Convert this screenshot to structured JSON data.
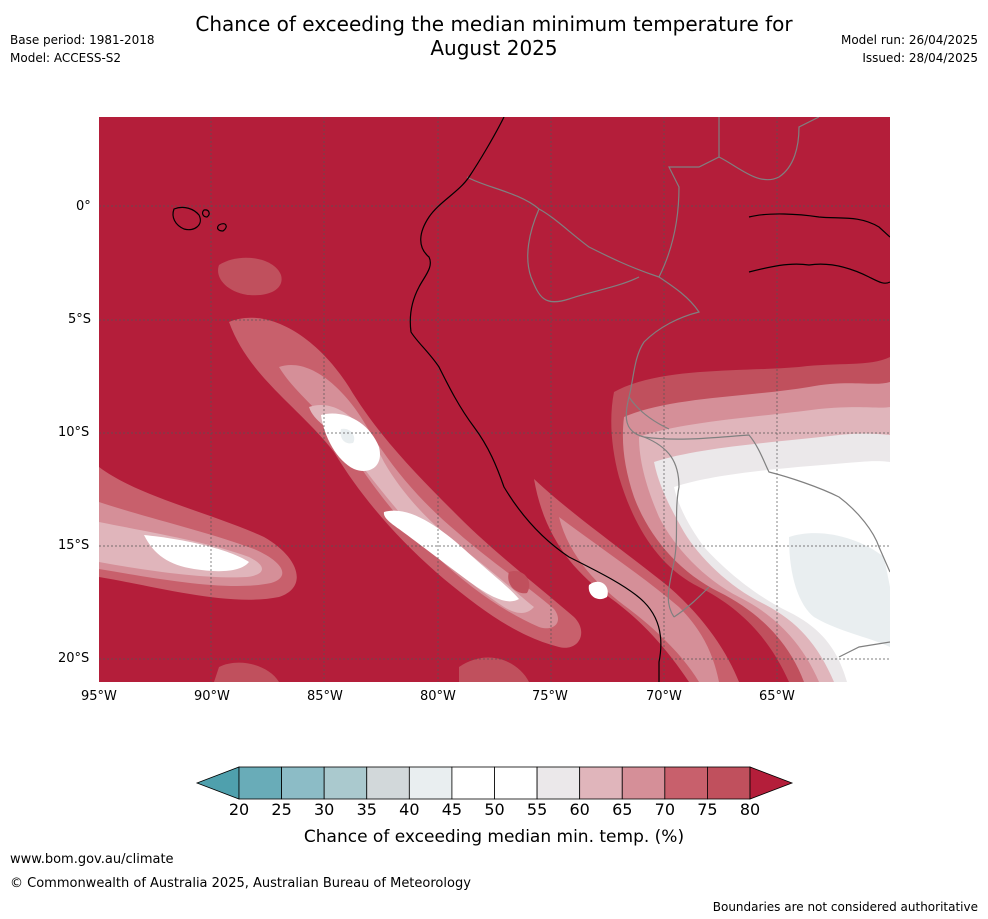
{
  "header": {
    "title_line1": "Chance of exceeding the median minimum temperature for",
    "title_line2": "August 2025",
    "base_period": "Base period: 1981-2018",
    "model": "Model: ACCESS-S2",
    "model_run": "Model run: 26/04/2025",
    "issued": "Issued: 28/04/2025"
  },
  "map": {
    "lat_labels": [
      "0°",
      "5°S",
      "10°S",
      "15°S",
      "20°S"
    ],
    "lon_labels": [
      "95°W",
      "90°W",
      "85°W",
      "80°W",
      "75°W",
      "70°W",
      "65°W"
    ],
    "background_color": "#b41e3a"
  },
  "colorbar": {
    "ticks": [
      "20",
      "25",
      "30",
      "35",
      "40",
      "45",
      "50",
      "55",
      "60",
      "65",
      "70",
      "75",
      "80"
    ],
    "colors": [
      "#69acb8",
      "#8cbcc6",
      "#aac9ce",
      "#d2d8da",
      "#e9eef0",
      "#ffffff",
      "#ffffff",
      "#ebe8ea",
      "#e0b5bb",
      "#d58f98",
      "#c8606c",
      "#c0505d"
    ],
    "low_extend_color": "#4fa0ad",
    "high_extend_color": "#b41e3a",
    "label": "Chance of exceeding median min. temp. (%)"
  },
  "footer": {
    "website": "www.bom.gov.au/climate",
    "copyright": "© Commonwealth of Australia 2025, Australian Bureau of Meteorology",
    "disclaimer": "Boundaries are not considered authoritative"
  }
}
